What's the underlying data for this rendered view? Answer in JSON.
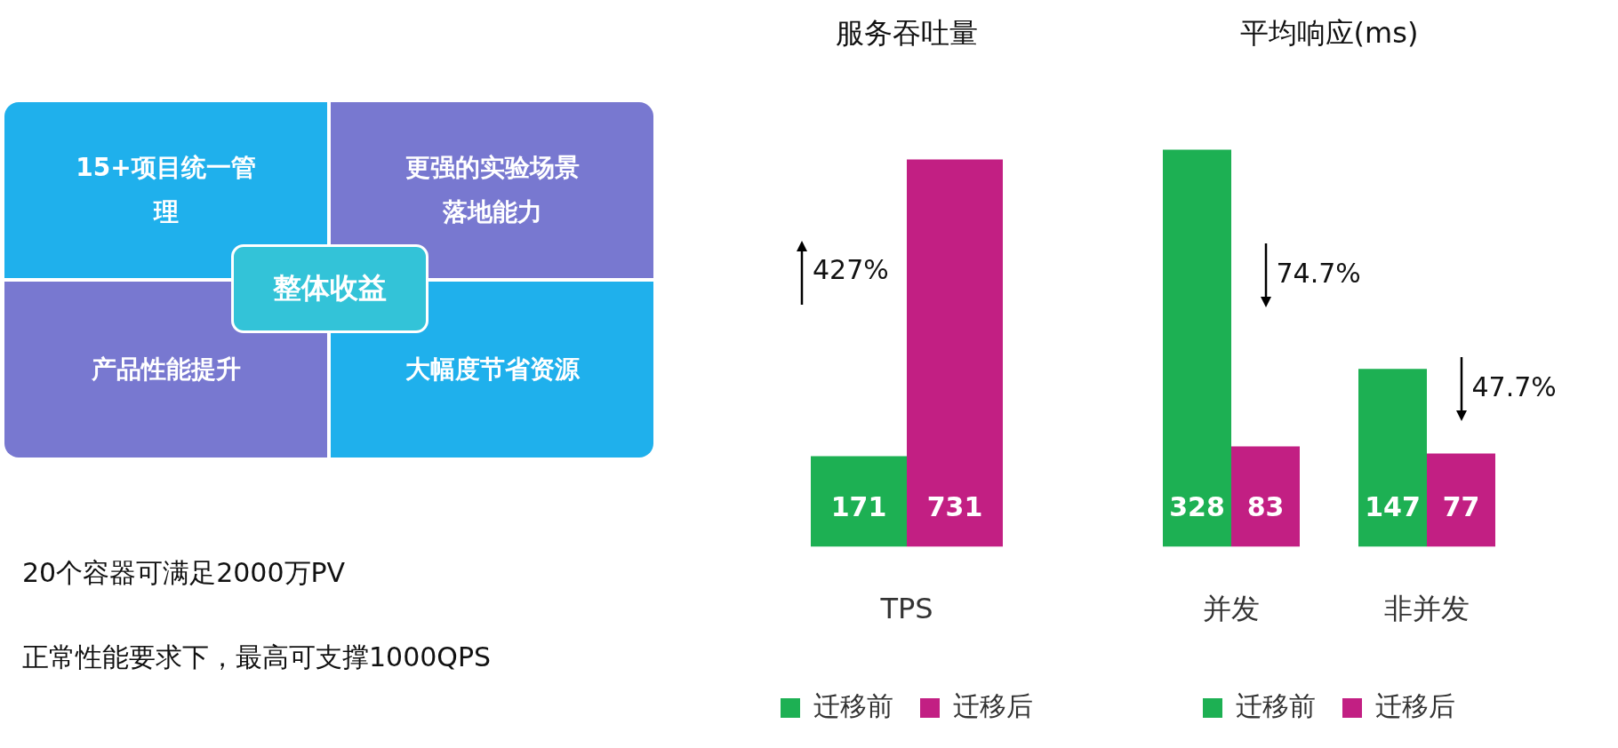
{
  "chart_data": [
    {
      "type": "other",
      "annotations": [
        "15+项目统一管理",
        "更强的实验场景落地能力",
        "产品性能提升",
        "大幅度节省资源",
        "整体收益",
        "20个容器可满足2000万PV",
        "正常性能要求下，最高可支撑1000QPS"
      ]
    },
    {
      "type": "bar",
      "title": "服务吞吐量",
      "categories": [
        "TPS"
      ],
      "series": [
        {
          "name": "迁移前",
          "color": "#1db053",
          "values": [
            171
          ]
        },
        {
          "name": "迁移后",
          "color": "#c21f83",
          "values": [
            731
          ]
        }
      ],
      "data_labels": true,
      "legend": "bottom",
      "grid": false,
      "annotations": [
        "427%"
      ]
    },
    {
      "type": "bar",
      "title": "平均响应(ms)",
      "categories": [
        "并发",
        "非并发"
      ],
      "series": [
        {
          "name": "迁移前",
          "color": "#1db053",
          "values": [
            328,
            147
          ]
        },
        {
          "name": "迁移后",
          "color": "#c21f83",
          "values": [
            83,
            77
          ]
        }
      ],
      "data_labels": true,
      "legend": "bottom",
      "grid": false,
      "annotations": [
        "74.7%",
        "47.7%"
      ]
    }
  ]
}
